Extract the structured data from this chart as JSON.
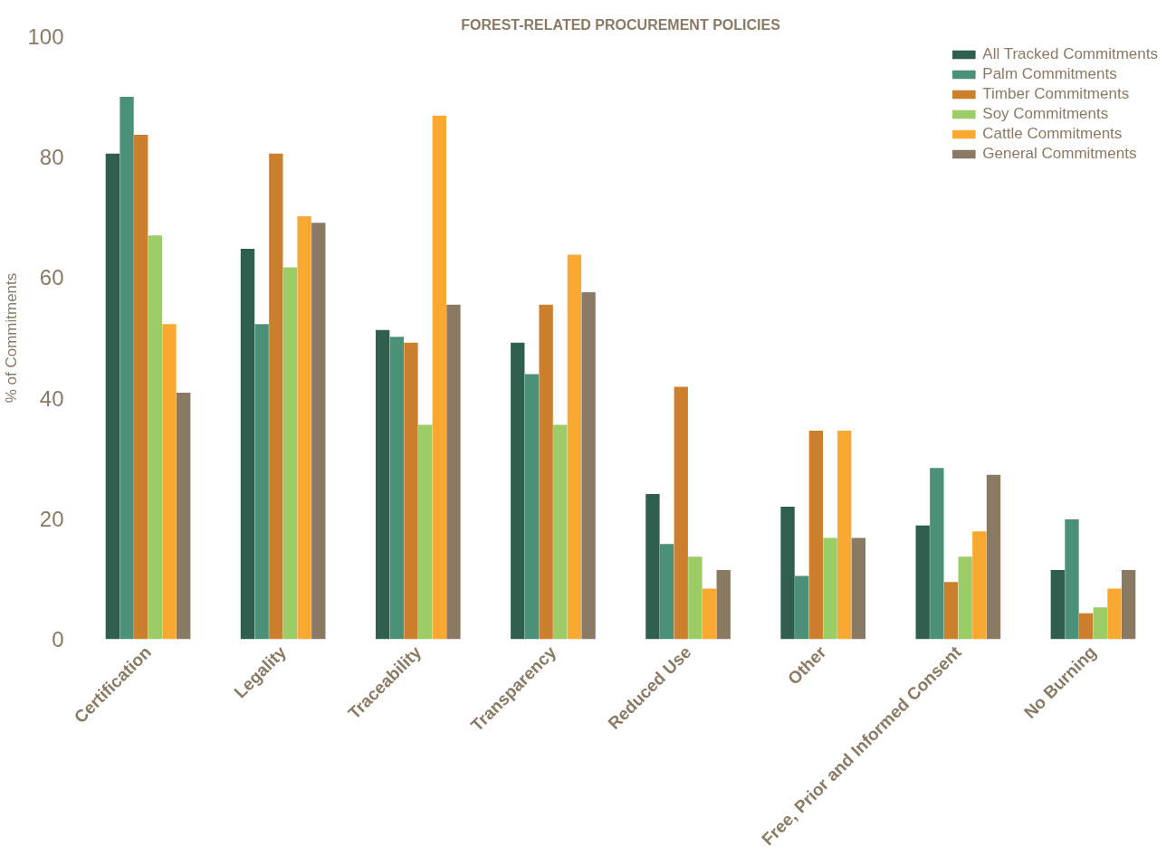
{
  "chart_data": {
    "type": "bar",
    "title": "FOREST-RELATED PROCUREMENT POLICIES",
    "ylabel": "% of Commitments",
    "categories": [
      "Certification",
      "Legality",
      "Traceability",
      "Transparency",
      "Reduced Use",
      "Other",
      "Free, Prior and Informed Consent",
      "No Burning"
    ],
    "series": [
      {
        "name": "All Tracked Commitments",
        "color": "#2f5e4e",
        "values": [
          80.6,
          64.8,
          51.3,
          49.2,
          24.1,
          22,
          18.9,
          11.5
        ]
      },
      {
        "name": "Palm Commitments",
        "color": "#4a9178",
        "values": [
          90,
          52.3,
          50.2,
          44,
          15.8,
          10.5,
          28.4,
          19.9
        ]
      },
      {
        "name": "Timber Commitments",
        "color": "#cc7f2c",
        "values": [
          83.7,
          80.6,
          49.2,
          55.5,
          41.9,
          34.6,
          9.5,
          4.3
        ]
      },
      {
        "name": "Soy Commitments",
        "color": "#9ccc65",
        "values": [
          67,
          61.7,
          35.6,
          35.6,
          13.7,
          16.8,
          13.7,
          5.3
        ]
      },
      {
        "name": "Cattle Commitments",
        "color": "#f9a932",
        "values": [
          52.3,
          70.2,
          86.9,
          63.8,
          8.4,
          34.6,
          17.9,
          8.4
        ]
      },
      {
        "name": "General Commitments",
        "color": "#8a7a64",
        "values": [
          40.9,
          69.1,
          55.5,
          57.6,
          11.5,
          16.8,
          27.3,
          11.5
        ]
      }
    ],
    "ylim": [
      0,
      100
    ],
    "yticks": [
      0,
      20,
      40,
      60,
      80,
      100
    ],
    "grid": false,
    "legend": "top right"
  }
}
